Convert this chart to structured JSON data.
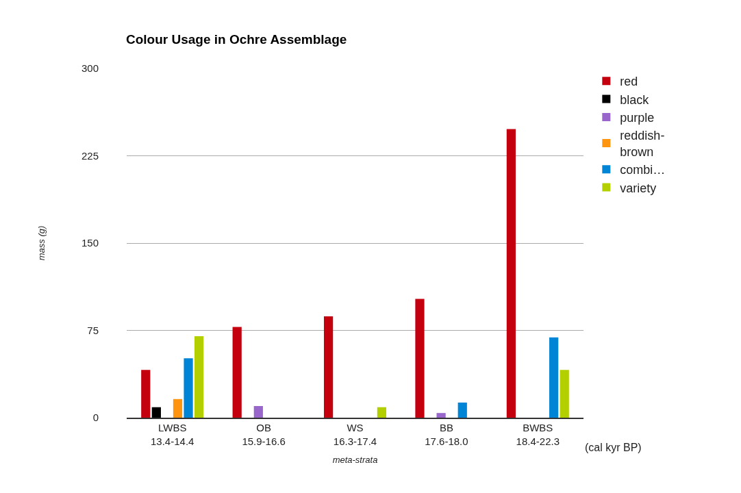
{
  "chart_data": {
    "type": "bar",
    "title": "Colour Usage in Ochre Assemblage",
    "xlabel": "meta-strata",
    "ylabel": "mass (g)",
    "categories": [
      "LWBS\n13.4-14.4",
      "OB\n15.9-16.6",
      "WS\n16.3-17.4",
      "BB\n17.6-18.0",
      "BWBS\n18.4-22.3"
    ],
    "series": [
      {
        "name": "red",
        "color": "#c4000f",
        "values": [
          41,
          78,
          87,
          102,
          248
        ]
      },
      {
        "name": "black",
        "color": "#000000",
        "values": [
          9,
          0,
          0,
          0,
          0
        ]
      },
      {
        "name": "purple",
        "color": "#9966cc",
        "values": [
          0,
          10,
          0,
          4,
          0
        ]
      },
      {
        "name": "reddish-\nbrown",
        "color": "#ff9411",
        "values": [
          16,
          0,
          0,
          0,
          0
        ]
      },
      {
        "name": "combi…",
        "color": "#0085d6",
        "values": [
          51,
          0,
          0,
          13,
          69
        ]
      },
      {
        "name": "variety",
        "color": "#b3cf00",
        "values": [
          70,
          0,
          9,
          0,
          41
        ]
      }
    ],
    "ylim": [
      0,
      300
    ],
    "yticks": [
      0,
      75,
      150,
      225,
      300
    ],
    "grid": "y",
    "legend": "top right",
    "annotations": [
      "(cal kyr BP)"
    ]
  }
}
